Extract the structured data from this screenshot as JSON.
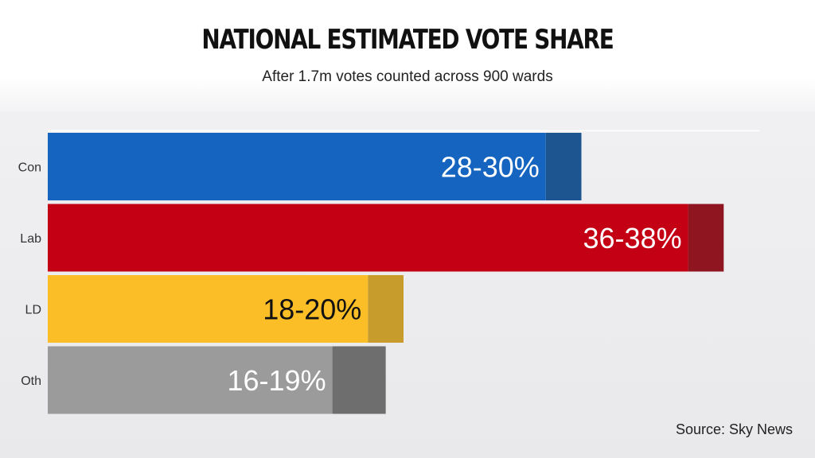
{
  "header": {
    "title": "NATIONAL ESTIMATED VOTE SHARE",
    "subtitle": "After 1.7m votes counted across 900 wards"
  },
  "footer": {
    "source": "Source: Sky News"
  },
  "chart_data": {
    "type": "bar",
    "orientation": "horizontal",
    "title": "NATIONAL ESTIMATED VOTE SHARE",
    "subtitle": "After 1.7m votes counted across 900 wards",
    "categories": [
      "Con",
      "Lab",
      "LD",
      "Oth"
    ],
    "series": [
      {
        "values_low": [
          28,
          36,
          18,
          16
        ],
        "values_high": [
          30,
          38,
          20,
          19
        ],
        "labels": [
          "28-30%",
          "36-38%",
          "18-20%",
          "16-19%"
        ],
        "colors": [
          "#1565c0",
          "#c40014",
          "#fbbe27",
          "#9b9b9b"
        ],
        "range_colors": [
          "#1d5591",
          "#8f1520",
          "#c79c2c",
          "#6e6e6e"
        ],
        "label_colors": [
          "#ffffff",
          "#ffffff",
          "#111111",
          "#ffffff"
        ]
      }
    ],
    "xlim": [
      0,
      40
    ],
    "grid": false,
    "legend": "none"
  }
}
